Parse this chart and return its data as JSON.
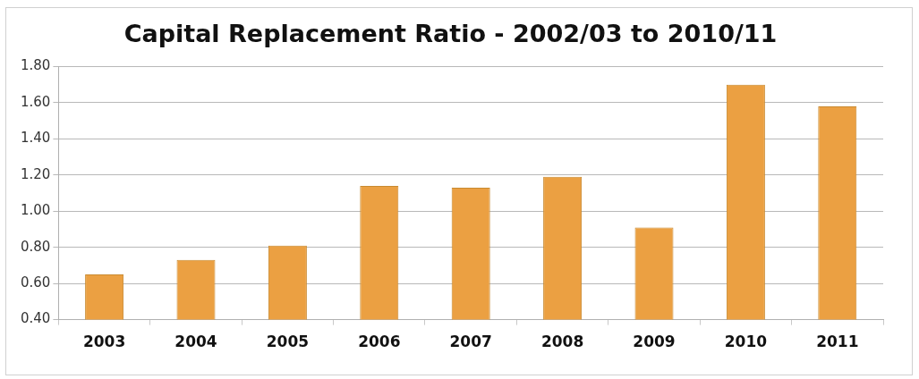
{
  "chart_data": {
    "type": "bar",
    "title": "Capital Replacement Ratio - 2002/03 to 2010/11",
    "categories": [
      "2003",
      "2004",
      "2005",
      "2006",
      "2007",
      "2008",
      "2009",
      "2010",
      "2011"
    ],
    "values": [
      0.65,
      0.73,
      0.81,
      1.14,
      1.13,
      1.19,
      0.91,
      1.7,
      1.58
    ],
    "color": "#eba042",
    "ylim": [
      0.4,
      1.8
    ],
    "yticks": [
      {
        "value": 0.4,
        "label": "0.40"
      },
      {
        "value": 0.6,
        "label": "0.60"
      },
      {
        "value": 0.8,
        "label": "0.80"
      },
      {
        "value": 1.0,
        "label": "1.00"
      },
      {
        "value": 1.2,
        "label": "1.20"
      },
      {
        "value": 1.4,
        "label": "1.40"
      },
      {
        "value": 1.6,
        "label": "1.60"
      },
      {
        "value": 1.8,
        "label": "1.80"
      }
    ],
    "grid": "y"
  }
}
